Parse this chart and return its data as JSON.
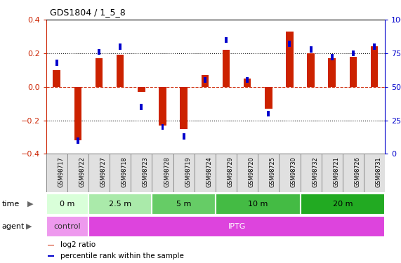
{
  "title": "GDS1804 / 1_5_8",
  "samples": [
    "GSM98717",
    "GSM98722",
    "GSM98727",
    "GSM98718",
    "GSM98723",
    "GSM98728",
    "GSM98719",
    "GSM98724",
    "GSM98729",
    "GSM98720",
    "GSM98725",
    "GSM98730",
    "GSM98732",
    "GSM98721",
    "GSM98726",
    "GSM98731"
  ],
  "log2_ratio": [
    0.1,
    -0.32,
    0.17,
    0.19,
    -0.03,
    -0.23,
    -0.25,
    0.07,
    0.22,
    0.05,
    -0.13,
    0.33,
    0.2,
    0.17,
    0.18,
    0.24
  ],
  "percentile_rank": [
    68,
    10,
    76,
    80,
    35,
    20,
    13,
    55,
    85,
    55,
    30,
    82,
    78,
    72,
    75,
    80
  ],
  "ylim_left": [
    -0.4,
    0.4
  ],
  "yticks_left": [
    -0.4,
    -0.2,
    0.0,
    0.2,
    0.4
  ],
  "ylim_right": [
    0,
    100
  ],
  "yticks_right": [
    0,
    25,
    50,
    75,
    100
  ],
  "red": "#cc2200",
  "blue": "#0000cc",
  "dotted_color": "#111111",
  "zero_line_color": "#cc2200",
  "bg_color": "#ffffff",
  "time_groups": [
    {
      "label": "0 m",
      "start": 0,
      "end": 2,
      "color": "#d9ffd9"
    },
    {
      "label": "2.5 m",
      "start": 2,
      "end": 5,
      "color": "#aaeaaa"
    },
    {
      "label": "5 m",
      "start": 5,
      "end": 8,
      "color": "#66cc66"
    },
    {
      "label": "10 m",
      "start": 8,
      "end": 12,
      "color": "#44bb44"
    },
    {
      "label": "20 m",
      "start": 12,
      "end": 16,
      "color": "#22aa22"
    }
  ],
  "agent_groups": [
    {
      "label": "control",
      "start": 0,
      "end": 2,
      "color": "#ee99ee",
      "text_color": "#333333"
    },
    {
      "label": "IPTG",
      "start": 2,
      "end": 16,
      "color": "#dd44dd",
      "text_color": "#ffffff"
    }
  ],
  "legend": [
    {
      "label": "log2 ratio",
      "color": "#cc2200"
    },
    {
      "label": "percentile rank within the sample",
      "color": "#0000cc"
    }
  ]
}
